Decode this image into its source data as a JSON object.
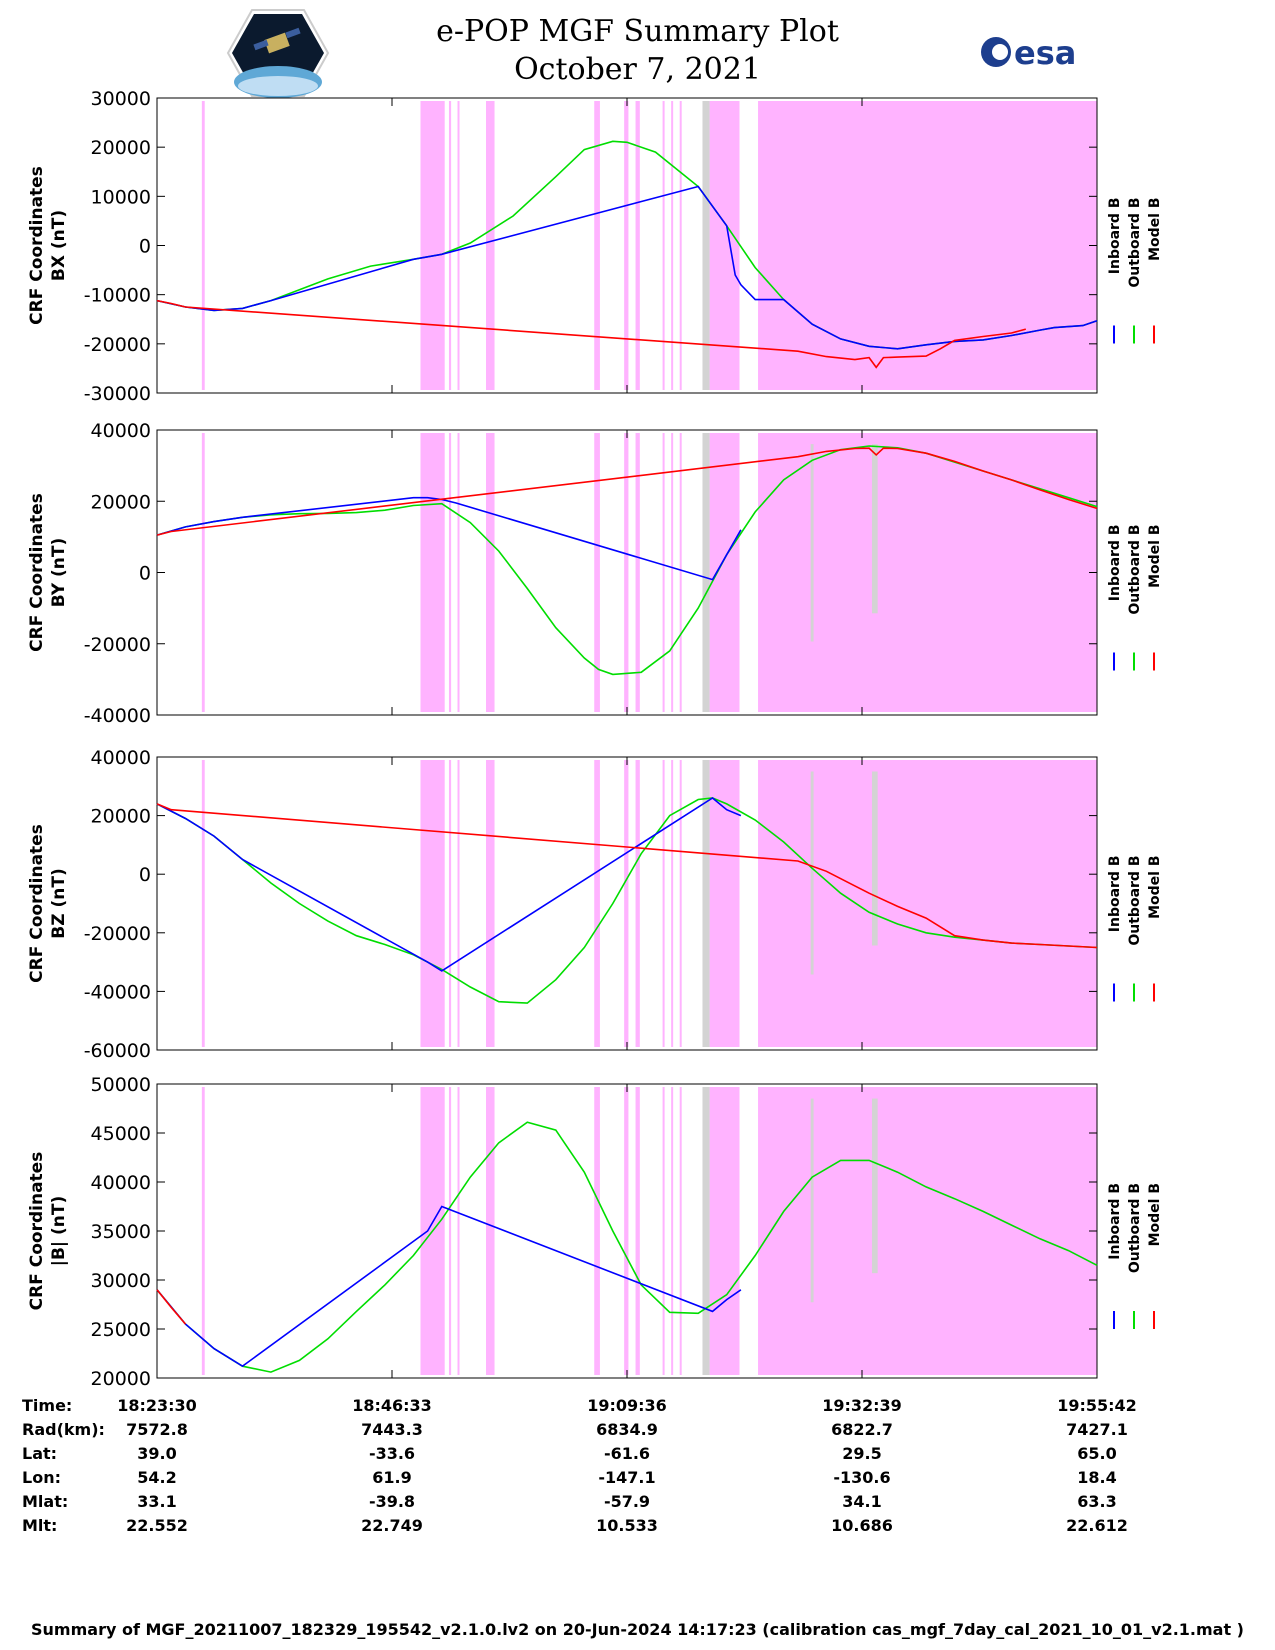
{
  "title": "e-POP MGF Summary Plot",
  "subtitle": "October 7, 2021",
  "logos": {
    "left": "CASSIOPE",
    "right": "esa"
  },
  "colors": {
    "inboard": "#0000ff",
    "outboard": "#00dd00",
    "model": "#ff0000",
    "flag_magenta": "#ffb3ff",
    "flag_gray": "#d3d3d3"
  },
  "chart_data": [
    {
      "type": "line",
      "ylabel": [
        "CRF Coordinates",
        "BX (nT)"
      ],
      "ylim": [
        -30000,
        30000
      ],
      "yticks": [
        30000,
        20000,
        10000,
        0,
        -10000,
        -20000,
        -30000
      ],
      "legend": [
        "Inboard B",
        "Outboard B",
        "Model B"
      ],
      "legend_position": "right",
      "series": [
        {
          "name": "Outboard B",
          "x": [
            0,
            2,
            4,
            6,
            8,
            10,
            12,
            15,
            18,
            20,
            22,
            25,
            28,
            30,
            32,
            33,
            35,
            38,
            40,
            42,
            44,
            46,
            48,
            50,
            52,
            54,
            56,
            58,
            60,
            62,
            63,
            65,
            66
          ],
          "values": [
            -11200,
            -12500,
            -13200,
            -12800,
            -11200,
            -9000,
            -6800,
            -4200,
            -2800,
            -1800,
            500,
            6000,
            14000,
            19500,
            21200,
            21000,
            19000,
            12000,
            4000,
            -4500,
            -11000,
            -16000,
            -19000,
            -20500,
            -21000,
            -20200,
            -19500,
            -19200,
            -18300,
            -17200,
            -16700,
            -16300,
            -15300
          ]
        },
        {
          "name": "Inboard B",
          "x": [
            0,
            2,
            4,
            6,
            8,
            18,
            20,
            38,
            40,
            40.6,
            41,
            42,
            44,
            46,
            48,
            50,
            52,
            54,
            56,
            58,
            60,
            62,
            63,
            65,
            66
          ],
          "values": [
            -11200,
            -12500,
            -13200,
            -12800,
            -11200,
            -2800,
            -1800,
            12000,
            4000,
            -6000,
            -8000,
            -11000,
            -11000,
            -16000,
            -19000,
            -20500,
            -21000,
            -20200,
            -19500,
            -19200,
            -18300,
            -17200,
            -16700,
            -16300,
            -15300
          ]
        },
        {
          "name": "Model B",
          "x": [
            0,
            1,
            2,
            45,
            47,
            49,
            50,
            50.5,
            51,
            52,
            54,
            55,
            56,
            58,
            60,
            61
          ],
          "values": [
            -11200,
            -11800,
            -12500,
            -21500,
            -22600,
            -23200,
            -22800,
            -24800,
            -22800,
            -22700,
            -22500,
            -21000,
            -19300,
            -18500,
            -17800,
            -17000
          ]
        }
      ],
      "flags": {
        "magenta": [
          [
            3.15,
            3.35
          ],
          [
            18.5,
            20.2
          ],
          [
            20.5,
            20.65
          ],
          [
            21.1,
            21.2
          ],
          [
            23.1,
            23.7
          ],
          [
            30.7,
            31.1
          ],
          [
            32.8,
            33.1
          ],
          [
            33.6,
            33.9
          ],
          [
            35.5,
            35.6
          ],
          [
            36.1,
            36.2
          ],
          [
            36.7,
            36.8
          ],
          [
            38.8,
            40.9
          ],
          [
            42.2,
            66
          ]
        ],
        "gray": [
          [
            38.3,
            38.8
          ]
        ]
      }
    },
    {
      "type": "line",
      "ylabel": [
        "CRF Coordinates",
        "BY (nT)"
      ],
      "ylim": [
        -40000,
        40000
      ],
      "yticks": [
        40000,
        20000,
        0,
        -20000,
        -40000
      ],
      "legend": [
        "Inboard B",
        "Outboard B",
        "Model B"
      ],
      "legend_position": "right",
      "series": [
        {
          "name": "Outboard B",
          "x": [
            0,
            2,
            4,
            6,
            8,
            10,
            12,
            14,
            16,
            18,
            20,
            22,
            24,
            26,
            28,
            30,
            31,
            32,
            34,
            36,
            38,
            40,
            42,
            44,
            46,
            48,
            50,
            52,
            54,
            56,
            58,
            60,
            62,
            64,
            66
          ],
          "values": [
            10500,
            12800,
            14300,
            15500,
            16200,
            16500,
            16600,
            16800,
            17500,
            18800,
            19300,
            14000,
            6000,
            -4500,
            -15500,
            -24000,
            -27200,
            -28600,
            -28000,
            -22000,
            -10000,
            5000,
            17000,
            26000,
            31500,
            34500,
            35500,
            35000,
            33500,
            31000,
            28500,
            26000,
            23500,
            21000,
            18500
          ]
        },
        {
          "name": "Inboard B",
          "x": [
            0,
            2,
            4,
            6,
            18,
            19,
            20,
            21,
            39,
            40,
            41
          ],
          "values": [
            10500,
            12800,
            14300,
            15500,
            21000,
            21000,
            20500,
            19500,
            -2000,
            5000,
            12000
          ]
        },
        {
          "name": "Model B",
          "x": [
            0,
            1,
            45,
            47,
            49,
            50,
            50.5,
            51,
            52,
            54,
            56,
            58,
            60,
            62,
            64,
            66
          ],
          "values": [
            10500,
            11500,
            32500,
            34000,
            34800,
            34900,
            33000,
            34900,
            34800,
            33500,
            31200,
            28500,
            26000,
            23200,
            20500,
            18000
          ]
        }
      ],
      "flags": {
        "magenta": [
          [
            3.15,
            3.35
          ],
          [
            18.5,
            20.2
          ],
          [
            20.5,
            20.65
          ],
          [
            21.1,
            21.2
          ],
          [
            23.1,
            23.7
          ],
          [
            30.7,
            31.1
          ],
          [
            32.8,
            33.1
          ],
          [
            33.6,
            33.9
          ],
          [
            35.5,
            35.6
          ],
          [
            36.1,
            36.2
          ],
          [
            36.7,
            36.8
          ],
          [
            38.8,
            40.9
          ],
          [
            42.2,
            66
          ]
        ],
        "gray": [
          [
            38.3,
            38.8
          ],
          [
            45.9,
            46.1
          ],
          [
            50.2,
            50.6
          ]
        ]
      }
    },
    {
      "type": "line",
      "ylabel": [
        "CRF Coordinates",
        "BZ (nT)"
      ],
      "ylim": [
        -60000,
        40000
      ],
      "yticks": [
        40000,
        20000,
        0,
        -20000,
        -40000,
        -60000
      ],
      "legend": [
        "Inboard B",
        "Outboard B",
        "Model B"
      ],
      "legend_position": "right",
      "series": [
        {
          "name": "Outboard B",
          "x": [
            0,
            2,
            4,
            6,
            8,
            10,
            12,
            14,
            16,
            18,
            20,
            22,
            24,
            26,
            28,
            30,
            32,
            34,
            36,
            38,
            39,
            40,
            42,
            44,
            46,
            48,
            50,
            52,
            54,
            56,
            58,
            60,
            62,
            64,
            66
          ],
          "values": [
            24000,
            19000,
            13000,
            5000,
            -3000,
            -10000,
            -16000,
            -21000,
            -24000,
            -27500,
            -32500,
            -38500,
            -43500,
            -44000,
            -36000,
            -25000,
            -10000,
            7000,
            20000,
            25500,
            26000,
            24000,
            18500,
            11000,
            2000,
            -6500,
            -13000,
            -17000,
            -20000,
            -21500,
            -22500,
            -23500,
            -24000,
            -24500,
            -25000
          ]
        },
        {
          "name": "Inboard B",
          "x": [
            0,
            2,
            4,
            6,
            19,
            20,
            39,
            40,
            41
          ],
          "values": [
            24000,
            19000,
            13000,
            5000,
            -30000,
            -33000,
            26000,
            22000,
            20000
          ]
        },
        {
          "name": "Model B",
          "x": [
            0,
            1,
            45,
            47,
            49,
            50,
            52,
            54,
            56,
            58,
            60,
            62,
            64,
            66
          ],
          "values": [
            24000,
            22000,
            4500,
            1000,
            -4000,
            -6500,
            -11000,
            -15000,
            -21000,
            -22500,
            -23500,
            -24000,
            -24500,
            -25000
          ]
        }
      ],
      "flags": {
        "magenta": [
          [
            3.15,
            3.35
          ],
          [
            18.5,
            20.2
          ],
          [
            20.5,
            20.65
          ],
          [
            21.1,
            21.2
          ],
          [
            23.1,
            23.7
          ],
          [
            30.7,
            31.1
          ],
          [
            32.8,
            33.1
          ],
          [
            33.6,
            33.9
          ],
          [
            35.5,
            35.6
          ],
          [
            36.1,
            36.2
          ],
          [
            36.7,
            36.8
          ],
          [
            38.8,
            40.9
          ],
          [
            42.2,
            66
          ]
        ],
        "gray": [
          [
            38.3,
            38.8
          ],
          [
            45.9,
            46.1
          ],
          [
            50.2,
            50.6
          ]
        ]
      }
    },
    {
      "type": "line",
      "ylabel": [
        "CRF Coordinates",
        "|B| (nT)"
      ],
      "ylim": [
        20000,
        50000
      ],
      "yticks": [
        50000,
        45000,
        40000,
        35000,
        30000,
        25000,
        20000
      ],
      "legend": [
        "Inboard B",
        "Outboard B",
        "Model B"
      ],
      "legend_position": "right",
      "series": [
        {
          "name": "Outboard B",
          "x": [
            0,
            2,
            4,
            6,
            8,
            10,
            12,
            14,
            16,
            18,
            20,
            22,
            24,
            26,
            28,
            30,
            32,
            34,
            36,
            38,
            40,
            42,
            44,
            46,
            48,
            50,
            52,
            54,
            56,
            58,
            60,
            62,
            64,
            66
          ],
          "values": [
            29000,
            25500,
            23000,
            21200,
            20600,
            21800,
            24000,
            26800,
            29500,
            32500,
            36200,
            40500,
            44000,
            46100,
            45300,
            41000,
            35000,
            29500,
            26700,
            26600,
            28500,
            32500,
            37000,
            40500,
            42200,
            42200,
            41000,
            39500,
            38300,
            37000,
            35600,
            34200,
            33000,
            31500
          ]
        },
        {
          "name": "Inboard B",
          "x": [
            0,
            2,
            4,
            6,
            19,
            20,
            39,
            40,
            41
          ],
          "values": [
            29000,
            25500,
            23000,
            21200,
            35000,
            37500,
            26800,
            28000,
            29000
          ]
        },
        {
          "name": "Model B",
          "x": [
            0,
            1,
            2
          ],
          "values": [
            29000,
            27200,
            25500
          ]
        }
      ],
      "flags": {
        "magenta": [
          [
            3.15,
            3.35
          ],
          [
            18.5,
            20.2
          ],
          [
            20.5,
            20.65
          ],
          [
            21.1,
            21.2
          ],
          [
            23.1,
            23.7
          ],
          [
            30.7,
            31.1
          ],
          [
            32.8,
            33.1
          ],
          [
            33.6,
            33.9
          ],
          [
            35.5,
            35.6
          ],
          [
            36.1,
            36.2
          ],
          [
            36.7,
            36.8
          ],
          [
            38.8,
            40.9
          ],
          [
            42.2,
            66
          ]
        ],
        "gray": [
          [
            38.3,
            38.8
          ],
          [
            45.9,
            46.1
          ],
          [
            50.2,
            50.6
          ]
        ]
      }
    }
  ],
  "ephemeris": {
    "rows": [
      {
        "label": "Time:",
        "values": [
          "18:23:30",
          "18:46:33",
          "19:09:36",
          "19:32:39",
          "19:55:42"
        ]
      },
      {
        "label": "Rad(km):",
        "values": [
          "7572.8",
          "7443.3",
          "6834.9",
          "6822.7",
          "7427.1"
        ]
      },
      {
        "label": "Lat:",
        "values": [
          "39.0",
          "-33.6",
          "-61.6",
          "29.5",
          "65.0"
        ]
      },
      {
        "label": "Lon:",
        "values": [
          "54.2",
          "61.9",
          "-147.1",
          "-130.6",
          "18.4"
        ]
      },
      {
        "label": "Mlat:",
        "values": [
          "33.1",
          "-39.8",
          "-57.9",
          "34.1",
          "63.3"
        ]
      },
      {
        "label": "Mlt:",
        "values": [
          "22.552",
          "22.749",
          "10.533",
          "10.686",
          "22.612"
        ]
      }
    ]
  },
  "footer": "Summary of MGF_20211007_182329_195542_v2.1.0.lv2 on 20-Jun-2024 14:17:23 (calibration cas_mgf_7day_cal_2021_10_01_v2.1.mat )"
}
